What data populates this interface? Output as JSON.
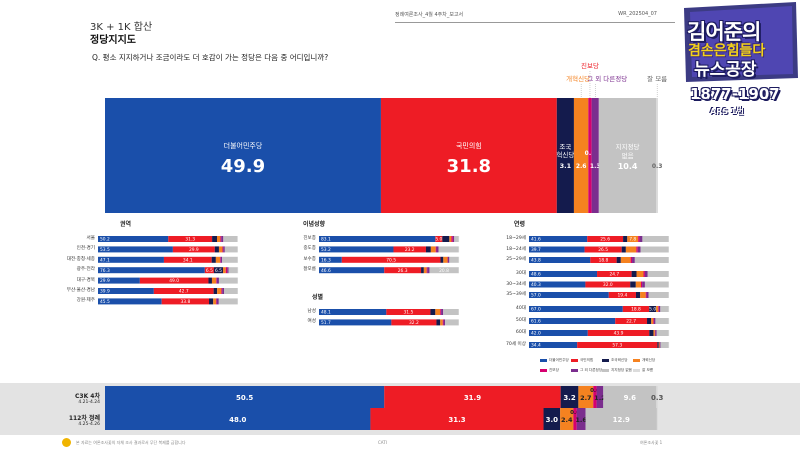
{
  "header": {
    "subtitle": "3K + 1K 합산",
    "title": "정당지지도",
    "meta_left": "정례여론조사_4월 4주차_보고서",
    "meta_right": "WR_202504_07",
    "question": "Q. 평소 지지하거나 조금이라도 더 호감이 가는 정당은 다음 중 어디입니까?"
  },
  "channel": {
    "line1": "김어준의",
    "line2": "겸손은힘들다",
    "line3": "뉴스공장",
    "phone": "1877-1907",
    "ars": "ARS 1번"
  },
  "colors": {
    "democratic": "#1a4faa",
    "ppp": "#ee1c25",
    "rebuild": "#141b4d",
    "reform": "#f58220",
    "progressive": "#d6006f",
    "other": "#7b2d8e",
    "none": "#c3c3c3",
    "dontknow": "#dcdcdc"
  },
  "chart_data": [
    {
      "type": "bar",
      "title": "정당지지도",
      "orientation": "horizontal-stacked",
      "series": [
        {
          "name": "더불어민주당",
          "value": 49.9
        },
        {
          "name": "국민의힘",
          "value": 31.8
        },
        {
          "name": "조국혁신당",
          "value": 3.1
        },
        {
          "name": "개혁신당",
          "value": 2.6
        },
        {
          "name": "진보당",
          "value": 0.6
        },
        {
          "name": "그 외 다른정당",
          "value": 1.3
        },
        {
          "name": "지지정당 없음",
          "value": 10.4
        },
        {
          "name": "잘 모름",
          "value": 0.3
        }
      ]
    },
    {
      "type": "bar",
      "title": "권역",
      "categories": [
        "서울",
        "인천·경기",
        "대전·충청·세종",
        "광주·전라",
        "대구·경북",
        "부산·울산·경남",
        "강원·제주"
      ],
      "rows": [
        [
          50.2,
          31.3,
          3.5,
          2.4,
          0.6,
          1.5,
          10.0,
          0.5
        ],
        [
          53.5,
          29.9,
          3.0,
          2.5,
          0.5,
          1.2,
          9.0,
          0.4
        ],
        [
          47.1,
          34.1,
          3.0,
          3.0,
          0.5,
          1.0,
          11.0,
          0.3
        ],
        [
          76.3,
          6.5,
          6.5,
          2.0,
          1.0,
          1.0,
          6.5,
          0.2
        ],
        [
          29.9,
          49.0,
          2.5,
          3.0,
          0.5,
          1.5,
          13.3,
          0.3
        ],
        [
          39.9,
          42.7,
          2.5,
          3.0,
          0.6,
          1.3,
          9.7,
          0.3
        ],
        [
          45.5,
          33.8,
          3.0,
          2.0,
          0.5,
          1.5,
          13.4,
          0.3
        ]
      ],
      "labels": [
        [
          "50.2",
          "31.3"
        ],
        [
          "53.5",
          "29.9"
        ],
        [
          "47.1",
          "34.1"
        ],
        [
          "76.3",
          "6.5",
          "6.5"
        ],
        [
          "29.9",
          "49.0"
        ],
        [
          "39.9",
          "42.7"
        ],
        [
          "45.5",
          "33.8"
        ]
      ]
    },
    {
      "type": "bar",
      "title": "이념성향",
      "categories": [
        "진보층",
        "중도층",
        "보수층",
        "잘모름"
      ],
      "rows": [
        [
          83.1,
          5.0,
          5.0,
          1.5,
          1.0,
          1.0,
          3.2,
          0.2
        ],
        [
          53.2,
          23.2,
          3.5,
          3.5,
          0.5,
          1.5,
          14.4,
          0.2
        ],
        [
          16.3,
          70.5,
          2.0,
          3.0,
          0.3,
          1.0,
          6.7,
          0.2
        ],
        [
          46.6,
          26.3,
          2.0,
          2.0,
          0.5,
          1.5,
          20.8,
          0.3
        ]
      ],
      "labels": [
        [
          "83.1",
          "5.0"
        ],
        [
          "53.2",
          "23.2"
        ],
        [
          "16.3",
          "70.5"
        ],
        [
          "46.6",
          "26.3",
          "",
          "",
          "",
          "",
          "20.8"
        ]
      ]
    },
    {
      "type": "bar",
      "title": "성별",
      "categories": [
        "남성",
        "여성"
      ],
      "rows": [
        [
          48.1,
          31.5,
          3.5,
          3.5,
          0.6,
          1.5,
          11.0,
          0.3
        ],
        [
          51.7,
          32.2,
          2.7,
          1.8,
          0.6,
          1.1,
          9.6,
          0.3
        ]
      ],
      "labels": [
        [
          "48.1",
          "31.5"
        ],
        [
          "51.7",
          "32.2"
        ]
      ]
    },
    {
      "type": "bar",
      "title": "연령",
      "categories": [
        "18~29세",
        "18~24세",
        "25~29세",
        "30대",
        "30~34세",
        "35~39세",
        "40대",
        "50대",
        "60대",
        "70세 이상"
      ],
      "rows": [
        [
          41.6,
          25.6,
          3.0,
          7.8,
          1.0,
          2.0,
          18.7,
          0.3
        ],
        [
          39.7,
          26.5,
          3.0,
          7.5,
          1.0,
          2.0,
          20.0,
          0.3
        ],
        [
          43.8,
          18.8,
          3.0,
          7.0,
          1.0,
          2.0,
          24.1,
          0.3
        ],
        [
          48.6,
          24.7,
          3.5,
          5.0,
          1.0,
          2.0,
          14.9,
          0.3
        ],
        [
          40.3,
          32.0,
          4.0,
          3.7,
          0.8,
          2.0,
          16.9,
          0.3
        ],
        [
          57.0,
          19.4,
          3.0,
          4.0,
          0.6,
          1.5,
          14.2,
          0.3
        ],
        [
          67.0,
          18.8,
          5.0,
          1.5,
          0.5,
          1.0,
          6.0,
          0.2
        ],
        [
          61.6,
          22.7,
          3.0,
          1.5,
          0.5,
          1.0,
          9.5,
          0.2
        ],
        [
          42.0,
          43.9,
          3.0,
          1.0,
          0.3,
          1.0,
          8.6,
          0.2
        ],
        [
          34.4,
          57.3,
          1.0,
          0.5,
          0.2,
          0.5,
          5.9,
          0.2
        ]
      ],
      "labels": [
        [
          "41.6",
          "25.6",
          "",
          "7.8"
        ],
        [
          "39.7",
          "26.5"
        ],
        [
          "43.8",
          "18.8"
        ],
        [
          "48.6",
          "24.7"
        ],
        [
          "40.3",
          "32.0"
        ],
        [
          "57.0",
          "19.4"
        ],
        [
          "67.0",
          "18.8",
          "5.0"
        ],
        [
          "61.6",
          "22.7"
        ],
        [
          "42.0",
          "43.9"
        ],
        [
          "34.4",
          "57.3"
        ]
      ]
    },
    {
      "type": "bar",
      "title": "조사 비교",
      "categories": [
        "C3K 4차",
        "112차 정례"
      ],
      "dates": [
        "4.21-4.24",
        "4.25-4.26"
      ],
      "rows": [
        [
          50.5,
          31.9,
          3.2,
          2.7,
          0.6,
          1.2,
          9.6,
          0.3
        ],
        [
          48.0,
          31.3,
          3.0,
          2.4,
          0.6,
          1.6,
          12.9,
          0.2
        ]
      ],
      "labels": [
        [
          "50.5",
          "31.9",
          "3.2",
          "2.7",
          "0.6",
          "1.2",
          "9.6",
          "0.3"
        ],
        [
          "48.0",
          "31.3",
          "3.0",
          "2.4",
          "0.6",
          "1.6",
          "12.9",
          ""
        ]
      ]
    }
  ],
  "legend": [
    "더불어민주당",
    "국민의힘",
    "조국혁신당",
    "개혁신당",
    "진보당",
    "그 외 다른정당",
    "지지정당 없음",
    "잘 모름"
  ],
  "footer": {
    "left": "본 자료는 여론조사꽃의 자체 조사 결과로서 무단 복제를 금합니다",
    "center": "CATI",
    "right": "여론조사꽃   1"
  }
}
